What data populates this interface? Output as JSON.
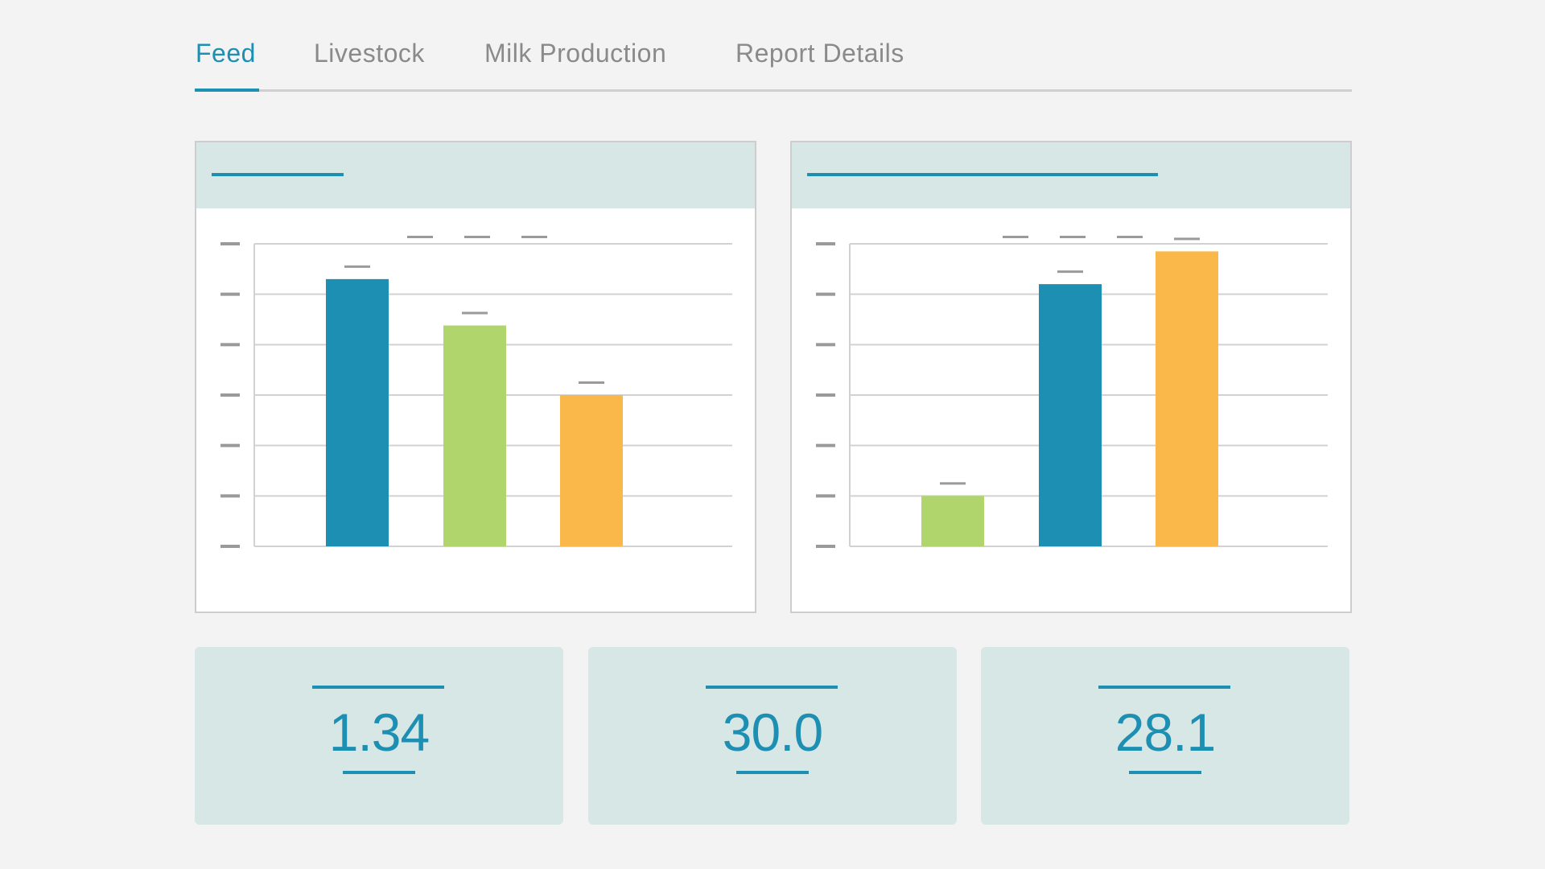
{
  "tabs": [
    {
      "label": "Feed",
      "active": true
    },
    {
      "label": "Livestock",
      "active": false
    },
    {
      "label": "Milk Production",
      "active": false
    },
    {
      "label": "Report Details",
      "active": false
    }
  ],
  "colors": {
    "accent": "#1d8fb3",
    "blue": "#1d8fb3",
    "green": "#afd56c",
    "orange": "#fbb84a"
  },
  "chart_data": [
    {
      "type": "bar",
      "title": "",
      "xlabel": "",
      "ylabel": "",
      "ylim": [
        0,
        6
      ],
      "grid": true,
      "legend": "top-center",
      "categories": [
        "",
        "",
        ""
      ],
      "values": [
        5.3,
        4.38,
        3.0
      ],
      "bar_colors": [
        "#1d8fb3",
        "#afd56c",
        "#fbb84a"
      ]
    },
    {
      "type": "bar",
      "title": "",
      "xlabel": "",
      "ylabel": "",
      "ylim": [
        0,
        6
      ],
      "grid": true,
      "legend": "top-center",
      "categories": [
        "",
        "",
        ""
      ],
      "values": [
        1.0,
        5.2,
        5.85
      ],
      "bar_colors": [
        "#afd56c",
        "#1d8fb3",
        "#fbb84a"
      ]
    }
  ],
  "stats": [
    {
      "value": "1.34"
    },
    {
      "value": "30.0"
    },
    {
      "value": "28.1"
    }
  ]
}
